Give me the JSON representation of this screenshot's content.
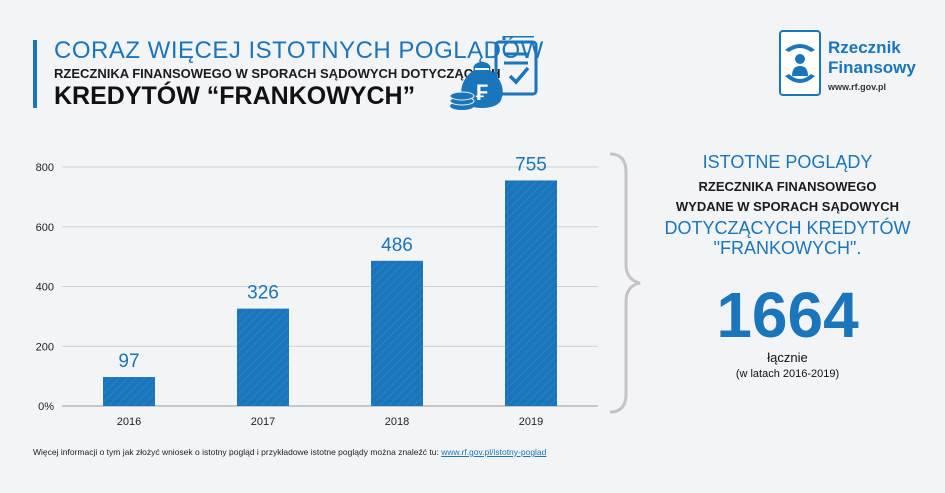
{
  "header": {
    "title_line1": "CORAZ WIĘCEJ ISTOTNYCH POGLĄDÓW",
    "title_line2": "RZECZNIKA FINANSOWEGO W SPORACH SĄDOWYCH DOTYCZĄCYCH",
    "title_line3": "KREDYTÓW “FRANKOWYCH”",
    "icon": "money-bag-document-icon",
    "coin_symbol": "₣"
  },
  "logo": {
    "name_line1": "Rzecznik",
    "name_line2": "Finansowy",
    "url": "www.rf.gov.pl",
    "icon": "hands-person-logo-icon"
  },
  "chart_data": {
    "type": "bar",
    "categories": [
      "2016",
      "2017",
      "2018",
      "2019"
    ],
    "values": [
      97,
      326,
      486,
      755
    ],
    "data_labels": [
      "97",
      "326",
      "486",
      "755"
    ],
    "y_ticks": [
      "0%",
      "200",
      "400",
      "600",
      "800"
    ],
    "ylim": [
      0,
      800
    ],
    "grid": true,
    "bar_color": "#1a75bb",
    "title": "",
    "xlabel": "",
    "ylabel": ""
  },
  "summary": {
    "line1": "ISTOTNE POGLĄDY",
    "line2": "RZECZNIKA FINANSOWEGO",
    "line3": "WYDANE W SPORACH SĄDOWYCH",
    "line4": "DOTYCZĄCYCH KREDYTÓW",
    "line5": "\"FRANKOWYCH\".",
    "total": "1664",
    "total_label": "łącznie",
    "total_period": "(w latach 2016-2019)"
  },
  "footer": {
    "text": "Więcej informacji o tym jak złożyć wniosek o istotny pogląd i przykładowe istotne poglądy można znaleźć tu: ",
    "link": "www.rf.gov.pl/istotny-poglad"
  },
  "colors": {
    "accent": "#1a75bb",
    "background": "#f3f4f7"
  }
}
